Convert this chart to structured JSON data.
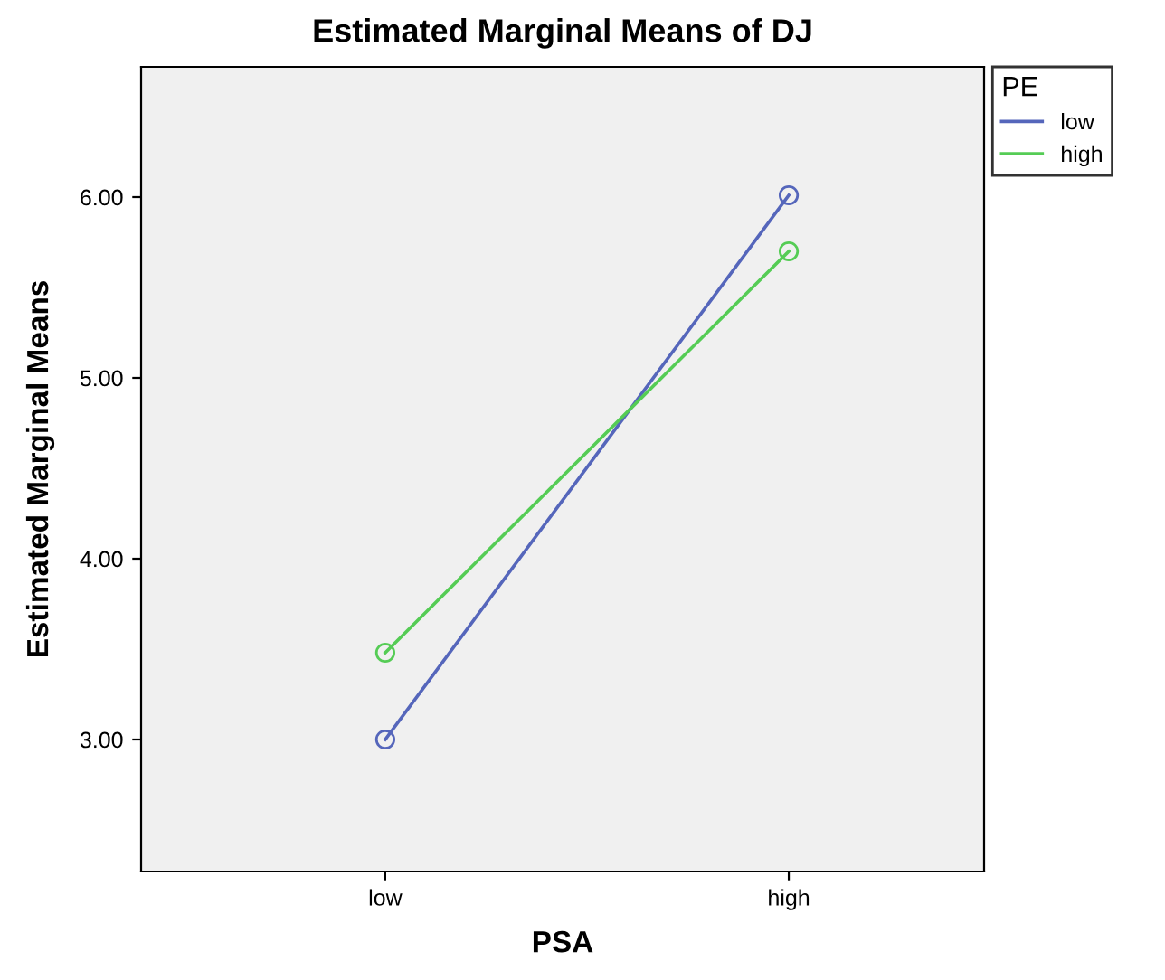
{
  "chart_data": {
    "type": "line",
    "title": "Estimated Marginal Means of DJ",
    "xlabel": "PSA",
    "ylabel": "Estimated Marginal Means",
    "legend_title": "PE",
    "categories": [
      "low",
      "high"
    ],
    "series": [
      {
        "name": "low",
        "color": "#5566bb",
        "values": [
          3.0,
          6.01
        ]
      },
      {
        "name": "high",
        "color": "#55cc55",
        "values": [
          3.48,
          5.7
        ]
      }
    ],
    "ylim": [
      2.27,
      6.72
    ],
    "yticks": [
      {
        "value": 3,
        "label": "3.00"
      },
      {
        "value": 4,
        "label": "4.00"
      },
      {
        "value": 5,
        "label": "5.00"
      },
      {
        "value": 6,
        "label": "6.00"
      }
    ],
    "grid": false,
    "legend": "top right",
    "marker": "circle",
    "line_style": "solid"
  }
}
